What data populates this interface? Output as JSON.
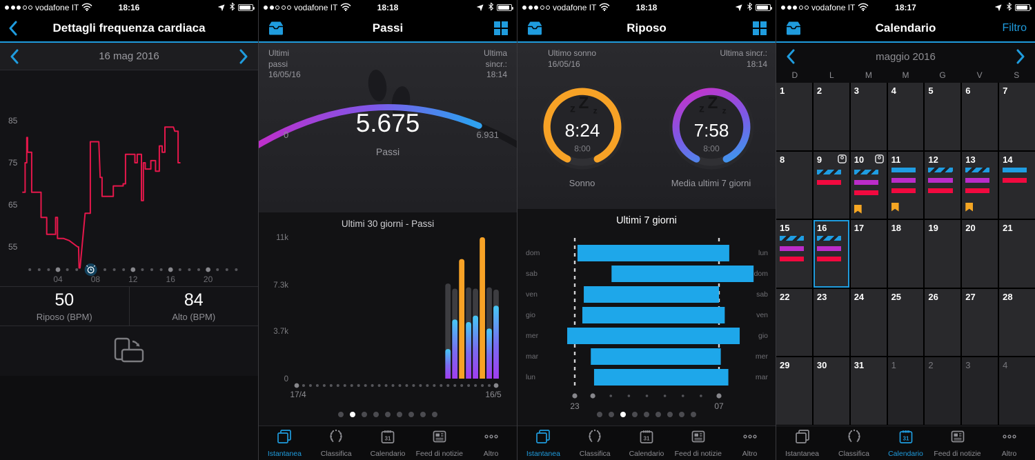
{
  "accent": "#1f9cde",
  "panels": {
    "heart": {
      "status": {
        "carrier": "vodafone IT",
        "time": "18:16",
        "signal": 3
      },
      "nav_title": "Dettagli frequenza cardiaca",
      "date_label": "16 mag 2016",
      "stats": [
        {
          "value": "50",
          "label": "Riposo (BPM)"
        },
        {
          "value": "84",
          "label": "Alto (BPM)"
        }
      ]
    },
    "steps": {
      "status": {
        "carrier": "vodafone IT",
        "time": "18:18",
        "signal": 2
      },
      "nav_title": "Passi",
      "header_left": [
        "Ultimi",
        "passi",
        "16/05/16"
      ],
      "header_right": [
        "Ultima",
        "sincr.:",
        "18:14"
      ],
      "gauge": {
        "value": 5675,
        "goal": 6931,
        "display": "5.675",
        "goal_display": "6.931",
        "min_label": "0",
        "sub_label": "Passi",
        "fraction": 0.82
      },
      "pager": {
        "count": 9,
        "active": 1
      }
    },
    "sleep": {
      "status": {
        "carrier": "vodafone IT",
        "time": "18:18",
        "signal": 3
      },
      "nav_title": "Riposo",
      "header_left": [
        "Ultimo sonno",
        "16/05/16"
      ],
      "header_right": [
        "Ultima sincr.:",
        "18:14"
      ],
      "rings": [
        {
          "time": "8:24",
          "goal": "8:00",
          "label": "Sonno",
          "style": "orange"
        },
        {
          "time": "7:58",
          "goal": "8:00",
          "label": "Media ultimi 7 giorni",
          "style": "gradient"
        }
      ],
      "pager": {
        "count": 9,
        "active": 2
      }
    },
    "calendar": {
      "status": {
        "carrier": "vodafone IT",
        "time": "18:17",
        "signal": 3
      },
      "nav_title": "Calendario",
      "filter_label": "Filtro",
      "month_label": "maggio 2016",
      "weekdays": [
        "D",
        "L",
        "M",
        "M",
        "G",
        "V",
        "S"
      ],
      "weeks": [
        [
          {
            "d": 1
          },
          {
            "d": 2
          },
          {
            "d": 3
          },
          {
            "d": 4
          },
          {
            "d": 5
          },
          {
            "d": 6
          },
          {
            "d": 7
          }
        ],
        [
          {
            "d": 8
          },
          {
            "d": 9,
            "scale": true,
            "bars": [
              "hatch",
              "red"
            ]
          },
          {
            "d": 10,
            "scale": true,
            "bars": [
              "hatch",
              "purple",
              "red"
            ],
            "bookmark": true
          },
          {
            "d": 11,
            "bars": [
              "blue",
              "purple",
              "red"
            ],
            "bookmark": true
          },
          {
            "d": 12,
            "bars": [
              "hatch",
              "purple",
              "red"
            ]
          },
          {
            "d": 13,
            "bars": [
              "hatch",
              "purple",
              "red"
            ],
            "bookmark": true
          },
          {
            "d": 14,
            "bars": [
              "blue",
              "red"
            ]
          }
        ],
        [
          {
            "d": 15,
            "bars": [
              "hatch",
              "purple",
              "red"
            ]
          },
          {
            "d": 16,
            "selected": true,
            "bars": [
              "hatch",
              "purple",
              "red"
            ]
          },
          {
            "d": 17
          },
          {
            "d": 18
          },
          {
            "d": 19
          },
          {
            "d": 20
          },
          {
            "d": 21
          }
        ],
        [
          {
            "d": 22
          },
          {
            "d": 23
          },
          {
            "d": 24
          },
          {
            "d": 25
          },
          {
            "d": 26
          },
          {
            "d": 27
          },
          {
            "d": 28
          }
        ],
        [
          {
            "d": 29
          },
          {
            "d": 30
          },
          {
            "d": 31
          },
          {
            "d": 1,
            "out": true
          },
          {
            "d": 2,
            "out": true
          },
          {
            "d": 3,
            "out": true
          },
          {
            "d": 4,
            "out": true
          }
        ]
      ]
    }
  },
  "tabbar": {
    "items": [
      {
        "label": "Istantanea",
        "icon": "snapshot-icon"
      },
      {
        "label": "Classifica",
        "icon": "leaderboard-icon"
      },
      {
        "label": "Calendario",
        "icon": "calendar-icon"
      },
      {
        "label": "Feed di notizie",
        "icon": "newsfeed-icon"
      },
      {
        "label": "Altro",
        "icon": "more-icon"
      }
    ]
  },
  "chart_data": [
    {
      "type": "line",
      "title": "Frequenza cardiaca - 16 mag 2016",
      "ylabel": "BPM",
      "yticks": [
        85,
        75,
        65,
        55
      ],
      "xticks": [
        {
          "hour": 4,
          "label": "04"
        },
        {
          "hour": 8,
          "label": "08"
        },
        {
          "hour": 12,
          "label": "12"
        },
        {
          "hour": 16,
          "label": "16"
        },
        {
          "hour": 20,
          "label": "20"
        }
      ],
      "xlim": [
        0,
        24
      ],
      "ylim": [
        50,
        88
      ],
      "rest_bpm": 50,
      "high_bpm": 84,
      "alarm_hour": 7.5,
      "color": "#e5174b",
      "points": [
        [
          0.2,
          68
        ],
        [
          0.5,
          68
        ],
        [
          0.5,
          75
        ],
        [
          0.68,
          75
        ],
        [
          0.68,
          81
        ],
        [
          0.76,
          81
        ],
        [
          0.76,
          77.5
        ],
        [
          1.2,
          77.5
        ],
        [
          1.2,
          68
        ],
        [
          2.2,
          68
        ],
        [
          2.2,
          62
        ],
        [
          2.8,
          62
        ],
        [
          2.8,
          58
        ],
        [
          3.75,
          58
        ],
        [
          3.75,
          62
        ],
        [
          3.95,
          62
        ],
        [
          3.95,
          57
        ],
        [
          4.6,
          57
        ],
        [
          5.2,
          56.5
        ],
        [
          6.1,
          55
        ],
        [
          6.2,
          55
        ],
        [
          6.25,
          50
        ],
        [
          6.35,
          50
        ],
        [
          6.85,
          62
        ],
        [
          6.9,
          63
        ],
        [
          7.45,
          63
        ],
        [
          7.45,
          80
        ],
        [
          8.35,
          80
        ],
        [
          8.5,
          71.5
        ],
        [
          8.7,
          71.5
        ],
        [
          8.7,
          67
        ],
        [
          9.9,
          67
        ],
        [
          9.9,
          69.5
        ],
        [
          10.95,
          69.5
        ],
        [
          10.95,
          70
        ],
        [
          11.2,
          70
        ],
        [
          11.2,
          77
        ],
        [
          12.2,
          77
        ],
        [
          12.2,
          75
        ],
        [
          12.45,
          75
        ],
        [
          12.45,
          77
        ],
        [
          12.9,
          77
        ],
        [
          12.9,
          66
        ],
        [
          13.1,
          66
        ],
        [
          13.1,
          75
        ],
        [
          13.3,
          75
        ],
        [
          13.3,
          73.5
        ],
        [
          13.9,
          73.5
        ],
        [
          13.9,
          75.5
        ],
        [
          14.4,
          75.5
        ],
        [
          14.4,
          73
        ],
        [
          14.8,
          73
        ],
        [
          14.8,
          79
        ],
        [
          15.1,
          79
        ],
        [
          15.1,
          77.5
        ],
        [
          15.4,
          77.5
        ],
        [
          15.4,
          83.5
        ],
        [
          16.3,
          83.5
        ],
        [
          16.45,
          82.5
        ],
        [
          16.8,
          82.5
        ],
        [
          16.8,
          75
        ],
        [
          17.05,
          75
        ]
      ]
    },
    {
      "type": "bar",
      "title": "Ultimi 30 giorni - Passi",
      "days": 30,
      "x_start_label": "17/4",
      "x_end_label": "16/5",
      "yticks": [
        {
          "v": 11000,
          "label": "11k"
        },
        {
          "v": 7300,
          "label": "7.3k"
        },
        {
          "v": 3700,
          "label": "3.7k"
        },
        {
          "v": 0,
          "label": "0"
        }
      ],
      "ylim": [
        0,
        11000
      ],
      "goal_color": "#3d3d41",
      "goal_met_color": "#f7a226",
      "bars": [
        {
          "day": 22,
          "steps": 2300,
          "goal": 7400,
          "goal_met": false
        },
        {
          "day": 23,
          "steps": 4600,
          "goal": 7000,
          "goal_met": false
        },
        {
          "day": 24,
          "steps": 9300,
          "goal": null,
          "goal_met": true
        },
        {
          "day": 25,
          "steps": 4400,
          "goal": 7100,
          "goal_met": false
        },
        {
          "day": 26,
          "steps": 4900,
          "goal": 7000,
          "goal_met": false
        },
        {
          "day": 27,
          "steps": 11000,
          "goal": null,
          "goal_met": true
        },
        {
          "day": 28,
          "steps": 3900,
          "goal": 7100,
          "goal_met": false
        },
        {
          "day": 29,
          "steps": 5675,
          "goal": 6931,
          "goal_met": false
        }
      ]
    },
    {
      "type": "bar-horizontal",
      "title": "Ultimi 7 giorni",
      "axis": {
        "start_label": "23",
        "end_label": "07",
        "start_hour": 23,
        "span_hours": 8
      },
      "bar_color": "#1ea7ea",
      "rows": [
        {
          "left": "dom",
          "right": "lun",
          "start": 0.15,
          "end": 8.57
        },
        {
          "left": "sab",
          "right": "dom",
          "start": 2.04,
          "end": 9.92
        },
        {
          "left": "ven",
          "right": "sab",
          "start": 0.5,
          "end": 8.0
        },
        {
          "left": "gio",
          "right": "ven",
          "start": 0.42,
          "end": 8.32
        },
        {
          "left": "mer",
          "right": "gio",
          "start": -0.42,
          "end": 9.15
        },
        {
          "left": "mar",
          "right": "mer",
          "start": 0.89,
          "end": 8.1
        },
        {
          "left": "lun",
          "right": "mar",
          "start": 1.07,
          "end": 8.52
        }
      ]
    }
  ]
}
